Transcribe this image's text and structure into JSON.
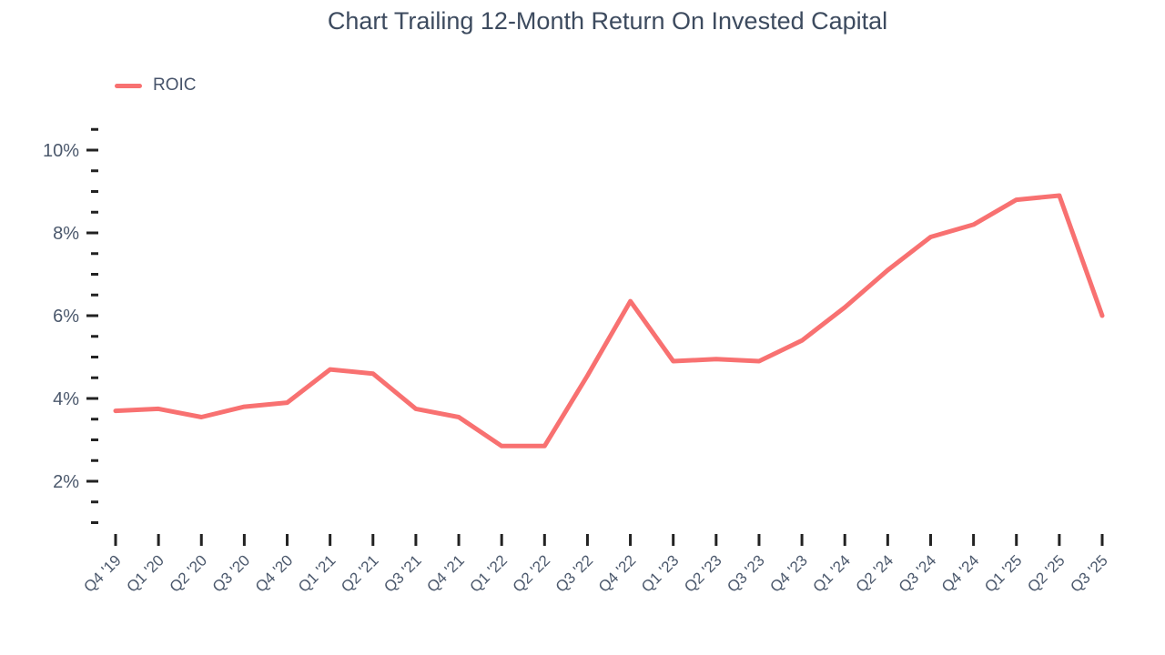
{
  "chart_data": {
    "type": "line",
    "title": "Chart Trailing 12-Month Return On Invested Capital",
    "legend": [
      {
        "name": "ROIC",
        "color": "#f87171"
      }
    ],
    "legend_position": "top-left",
    "grid": false,
    "categories": [
      "Q4 '19",
      "Q1 '20",
      "Q2 '20",
      "Q3 '20",
      "Q4 '20",
      "Q1 '21",
      "Q2 '21",
      "Q3 '21",
      "Q4 '21",
      "Q1 '22",
      "Q2 '22",
      "Q3 '22",
      "Q4 '22",
      "Q1 '23",
      "Q2 '23",
      "Q3 '23",
      "Q4 '23",
      "Q1 '24",
      "Q2 '24",
      "Q3 '24",
      "Q4 '24",
      "Q1 '25",
      "Q2 '25",
      "Q3 '25"
    ],
    "series": [
      {
        "name": "ROIC",
        "color": "#f87171",
        "values": [
          3.7,
          3.75,
          3.55,
          3.8,
          3.9,
          4.7,
          4.6,
          3.75,
          3.55,
          2.85,
          2.85,
          4.55,
          6.35,
          4.9,
          4.95,
          4.9,
          5.4,
          6.2,
          7.1,
          7.9,
          8.2,
          8.8,
          8.9,
          6.0
        ]
      }
    ],
    "y_axis": {
      "unit": "%",
      "major_ticks": [
        2,
        4,
        6,
        8,
        10
      ],
      "major_tick_labels": [
        "2%",
        "4%",
        "6%",
        "8%",
        "10%"
      ],
      "minor_tick_step": 0.5,
      "minor_tick_min": 1.0,
      "minor_tick_max": 10.5,
      "ylim": [
        0.5,
        11
      ]
    }
  }
}
